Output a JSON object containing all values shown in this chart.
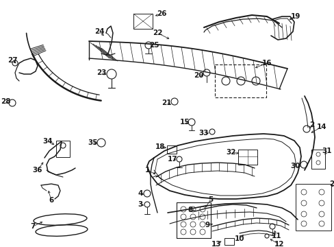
{
  "bg_color": "#ffffff",
  "line_color": "#1a1a1a",
  "figsize": [
    4.89,
    3.6
  ],
  "dpi": 100,
  "label_fontsize": 7.5,
  "arrow_lw": 0.55
}
